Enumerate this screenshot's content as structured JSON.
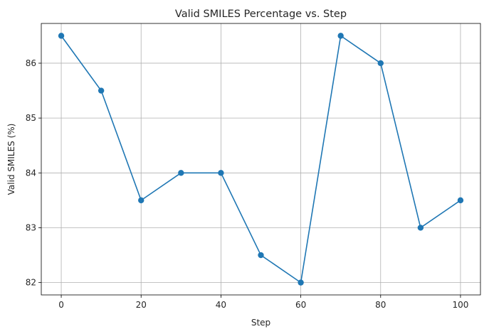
{
  "chart_data": {
    "type": "line",
    "title": "Valid SMILES Percentage vs. Step",
    "xlabel": "Step",
    "ylabel": "Valid SMILES (%)",
    "x": [
      0,
      10,
      20,
      30,
      40,
      50,
      60,
      70,
      80,
      90,
      100
    ],
    "series": [
      {
        "values": [
          86.5,
          85.5,
          83.5,
          84.0,
          84.0,
          82.5,
          82.0,
          86.5,
          86.0,
          83.0,
          83.5
        ],
        "color": "#1f77b4",
        "marker": "circle"
      }
    ],
    "xlim": [
      -5,
      105
    ],
    "ylim": [
      81.775,
      86.725
    ],
    "xticks": [
      0,
      20,
      40,
      60,
      80,
      100
    ],
    "yticks": [
      82,
      83,
      84,
      85,
      86
    ],
    "grid": true,
    "legend": false
  }
}
